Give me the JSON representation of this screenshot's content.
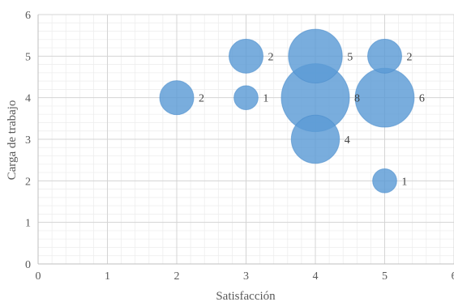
{
  "chart_data": {
    "type": "bubble",
    "title": "",
    "xlabel": "Satisfacción",
    "ylabel": "Carga de trabajo",
    "xlim": [
      0,
      6
    ],
    "ylim": [
      0,
      6
    ],
    "xticks": [
      "0",
      "1",
      "2",
      "3",
      "4",
      "5",
      "6"
    ],
    "yticks": [
      "0",
      "1",
      "2",
      "3",
      "4",
      "5",
      "6"
    ],
    "grid": true,
    "minor_grid": true,
    "legend": "none",
    "bubble_color": "#5b9bd5",
    "points": [
      {
        "x": 2,
        "y": 4,
        "size": 2,
        "label": "2"
      },
      {
        "x": 3,
        "y": 5,
        "size": 2,
        "label": "2"
      },
      {
        "x": 3,
        "y": 4,
        "size": 1,
        "label": "1"
      },
      {
        "x": 4,
        "y": 5,
        "size": 5,
        "label": "5"
      },
      {
        "x": 4,
        "y": 4,
        "size": 8,
        "label": "8"
      },
      {
        "x": 4,
        "y": 3,
        "size": 4,
        "label": "4"
      },
      {
        "x": 5,
        "y": 5,
        "size": 2,
        "label": "2"
      },
      {
        "x": 5,
        "y": 4,
        "size": 6,
        "label": "6"
      },
      {
        "x": 5,
        "y": 2,
        "size": 1,
        "label": "1"
      }
    ]
  }
}
